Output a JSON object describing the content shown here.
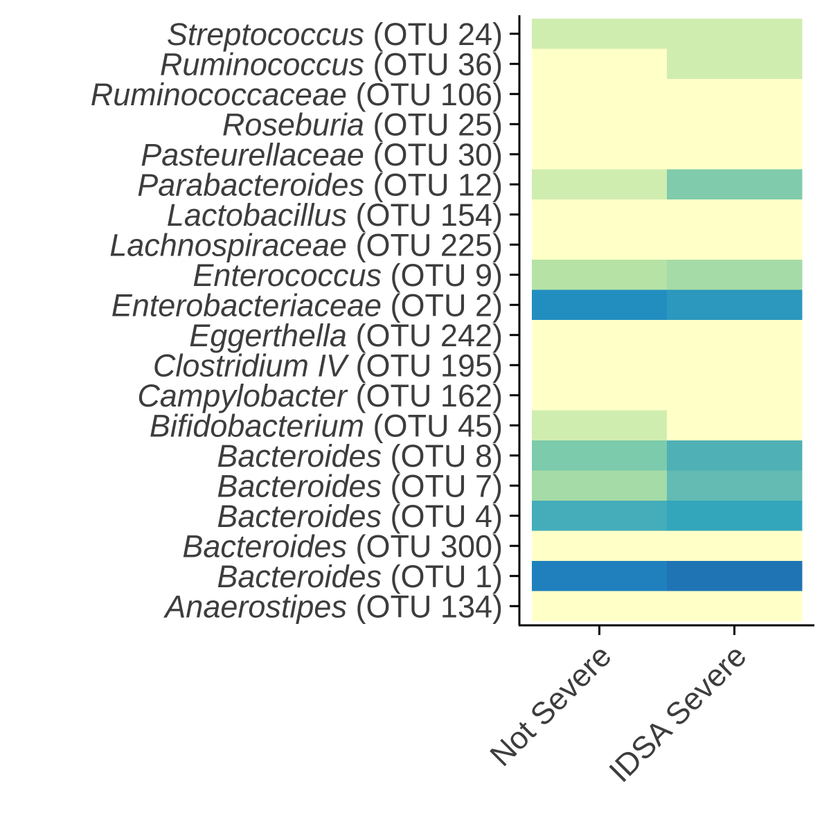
{
  "chart_data": {
    "type": "heatmap",
    "title": "",
    "xlabel": "",
    "ylabel": "",
    "x_categories": [
      "Not Severe",
      "IDSA Severe"
    ],
    "y_categories": [
      {
        "genus": "Streptococcus",
        "otu": "(OTU 24)"
      },
      {
        "genus": "Ruminococcus",
        "otu": "(OTU 36)"
      },
      {
        "genus": "Ruminococcaceae",
        "otu": "(OTU 106)"
      },
      {
        "genus": "Roseburia",
        "otu": "(OTU 25)"
      },
      {
        "genus": "Pasteurellaceae",
        "otu": "(OTU 30)"
      },
      {
        "genus": "Parabacteroides",
        "otu": "(OTU 12)"
      },
      {
        "genus": "Lactobacillus",
        "otu": "(OTU 154)"
      },
      {
        "genus": "Lachnospiraceae",
        "otu": "(OTU 225)"
      },
      {
        "genus": "Enterococcus",
        "otu": "(OTU 9)"
      },
      {
        "genus": "Enterobacteriaceae",
        "otu": "(OTU 2)"
      },
      {
        "genus": "Eggerthella",
        "otu": "(OTU 242)"
      },
      {
        "genus": "Clostridium IV",
        "otu": "(OTU 195)"
      },
      {
        "genus": "Campylobacter",
        "otu": "(OTU 162)"
      },
      {
        "genus": "Bifidobacterium",
        "otu": "(OTU 45)"
      },
      {
        "genus": "Bacteroides",
        "otu": "(OTU 8)"
      },
      {
        "genus": "Bacteroides",
        "otu": "(OTU 7)"
      },
      {
        "genus": "Bacteroides",
        "otu": "(OTU 4)"
      },
      {
        "genus": "Bacteroides",
        "otu": "(OTU 300)"
      },
      {
        "genus": "Bacteroides",
        "otu": "(OTU 1)"
      },
      {
        "genus": "Anaerostipes",
        "otu": "(OTU 134)"
      }
    ],
    "cell_colors": [
      [
        "#d0edb0",
        "#d0edb0"
      ],
      [
        "#ffffc8",
        "#d0edb0"
      ],
      [
        "#ffffc8",
        "#ffffc8"
      ],
      [
        "#ffffc8",
        "#ffffc8"
      ],
      [
        "#ffffc8",
        "#ffffc8"
      ],
      [
        "#d0edb0",
        "#7fcbac"
      ],
      [
        "#ffffc8",
        "#ffffc8"
      ],
      [
        "#ffffc8",
        "#ffffc8"
      ],
      [
        "#b6e2a6",
        "#a5dba6"
      ],
      [
        "#228ec0",
        "#2c98bd"
      ],
      [
        "#ffffc8",
        "#ffffc8"
      ],
      [
        "#ffffc8",
        "#ffffc8"
      ],
      [
        "#ffffc8",
        "#ffffc8"
      ],
      [
        "#d0edb0",
        "#ffffc8"
      ],
      [
        "#7dcbad",
        "#4fb0b6"
      ],
      [
        "#a5dba6",
        "#63bbb3"
      ],
      [
        "#44adb9",
        "#34a6bb"
      ],
      [
        "#ffffc8",
        "#ffffc8"
      ],
      [
        "#2080bd",
        "#1f74b4"
      ],
      [
        "#ffffc8",
        "#ffffc8"
      ]
    ],
    "legend": "none",
    "grid": false
  }
}
